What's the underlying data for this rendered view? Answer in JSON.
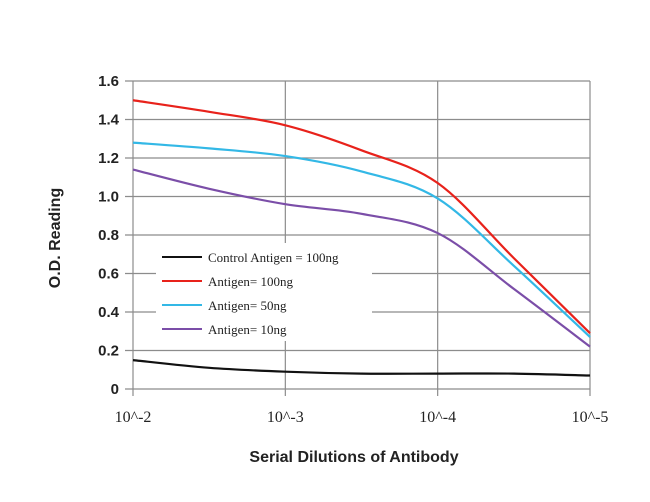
{
  "chart_data": {
    "type": "line",
    "xlabel": "Serial Dilutions of Antibody",
    "ylabel": "O.D. Reading",
    "x_tick_labels": [
      "10^-2",
      "10^-3",
      "10^-4",
      "10^-5"
    ],
    "x": [
      -2,
      -2.5,
      -3,
      -3.5,
      -4,
      -4.5,
      -5
    ],
    "ylim": [
      0,
      1.6
    ],
    "y_ticks": [
      "0",
      "0.2",
      "0.4",
      "0.6",
      "0.8",
      "1.0",
      "1.2",
      "1.4",
      "1.6"
    ],
    "grid": true,
    "legend_position": "center-left",
    "series": [
      {
        "name": "Control Antigen = 100ng",
        "color": "#111111",
        "values": [
          0.15,
          0.11,
          0.09,
          0.08,
          0.08,
          0.08,
          0.07
        ]
      },
      {
        "name": "Antigen= 100ng",
        "color": "#e8221b",
        "values": [
          1.5,
          1.44,
          1.37,
          1.24,
          1.07,
          0.68,
          0.29
        ]
      },
      {
        "name": "Antigen= 50ng",
        "color": "#33b8e6",
        "values": [
          1.28,
          1.25,
          1.21,
          1.13,
          0.99,
          0.64,
          0.27
        ]
      },
      {
        "name": "Antigen= 10ng",
        "color": "#7b4ea8",
        "values": [
          1.14,
          1.04,
          0.96,
          0.91,
          0.81,
          0.52,
          0.22
        ]
      }
    ]
  }
}
